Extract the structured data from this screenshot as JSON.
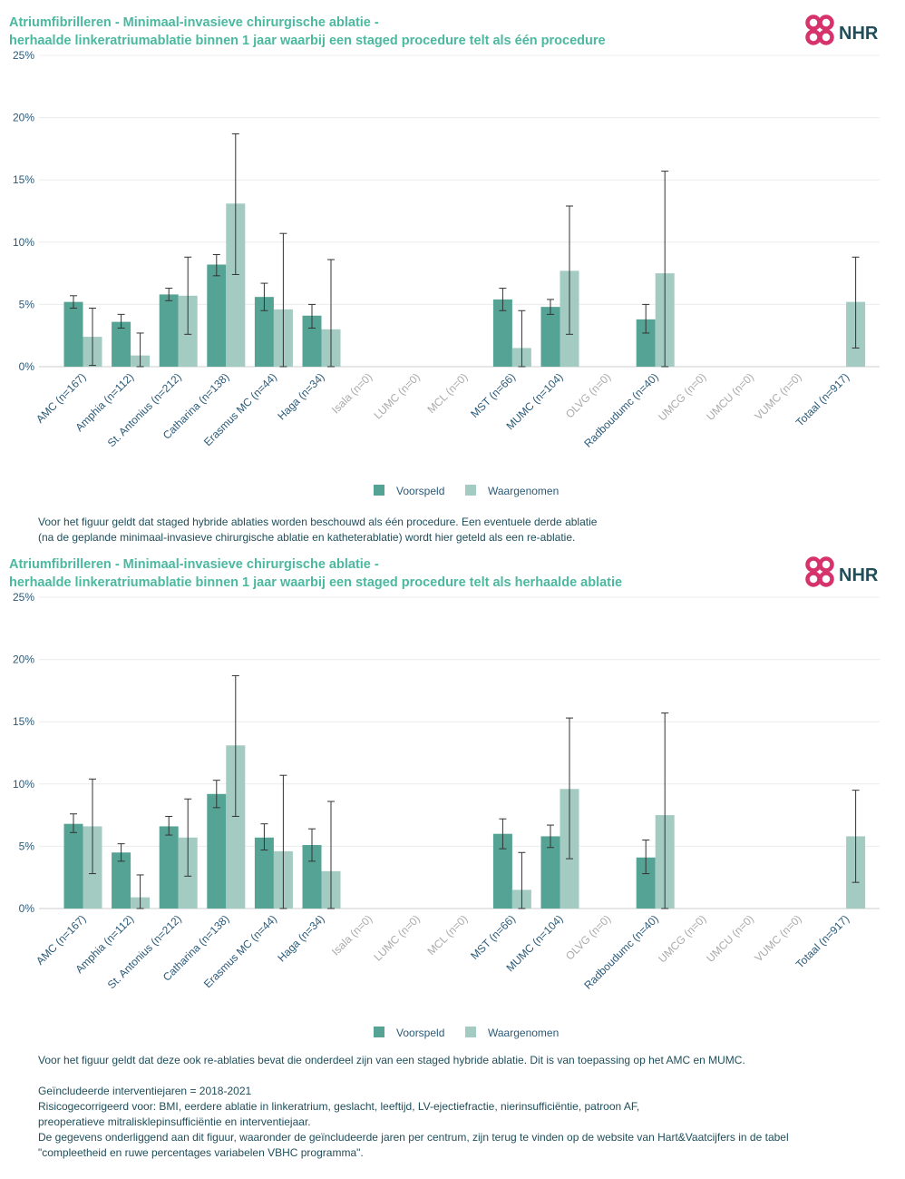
{
  "logo": {
    "text": "NHR",
    "brand_color": "#d6336c",
    "text_color": "#1f4e5a"
  },
  "legend": {
    "predicted": "Voorspeld",
    "observed": "Waargenomen"
  },
  "colors": {
    "predicted": "#55a394",
    "observed": "#a3cbc2",
    "active_label": "#2b5a78",
    "inactive_label": "#aaaaaa",
    "title": "#4bb8a0",
    "text": "#1f4e5a"
  },
  "chart1": {
    "title_line1": "Atriumfibrilleren - Minimaal-invasieve chirurgische ablatie -",
    "title_line2": "herhaalde linkeratriumablatie binnen 1 jaar waarbij een staged procedure telt als één procedure",
    "note_line1": "Voor het figuur geldt dat staged hybride ablaties worden beschouwd als één procedure. Een eventuele derde ablatie",
    "note_line2": "(na de geplande minimaal-invasieve chirurgische ablatie en katheterablatie) wordt hier geteld als een re-ablatie."
  },
  "chart2": {
    "title_line1": "Atriumfibrilleren - Minimaal-invasieve chirurgische ablatie -",
    "title_line2": "herhaalde linkeratriumablatie binnen 1 jaar waarbij een staged procedure telt als herhaalde ablatie",
    "note_line1": "Voor het figuur geldt dat deze ook re-ablaties bevat die onderdeel zijn van een staged hybride ablatie. Dit is van toepassing op het AMC en MUMC."
  },
  "footer": {
    "line1": "Geïncludeerde interventiejaren = 2018-2021",
    "line2": "Risicogecorrigeerd voor: BMI, eerdere ablatie in linkeratrium, geslacht, leeftijd, LV-ejectiefractie, nierinsufficiëntie, patroon AF,",
    "line3": "preoperatieve mitralisklepinsufficiëntie en interventiejaar.",
    "line4": "De gegevens onderliggend aan dit figuur, waaronder de geïncludeerde jaren per centrum, zijn terug te vinden op de website van Hart&Vaatcijfers in de tabel",
    "line5": "\"compleetheid en ruwe percentages variabelen VBHC programma\"."
  },
  "chart_data": [
    {
      "type": "bar",
      "title": "Atriumfibrilleren - Minimaal-invasieve chirurgische ablatie - herhaalde linkeratriumablatie binnen 1 jaar waarbij een staged procedure telt als één procedure",
      "categories": [
        "AMC (n=167)",
        "Amphia (n=112)",
        "St. Antonius (n=212)",
        "Catharina (n=138)",
        "Erasmus MC (n=44)",
        "Haga (n=34)",
        "Isala (n=0)",
        "LUMC (n=0)",
        "MCL (n=0)",
        "MST (n=66)",
        "MUMC (n=104)",
        "OLVG (n=0)",
        "Radboudumc (n=40)",
        "UMCG (n=0)",
        "UMCU (n=0)",
        "VUMC (n=0)",
        "Totaal (n=917)"
      ],
      "active": [
        true,
        true,
        true,
        true,
        true,
        true,
        false,
        false,
        false,
        true,
        true,
        false,
        true,
        false,
        false,
        false,
        true
      ],
      "yticks": [
        "0%",
        "5%",
        "10%",
        "15%",
        "20%",
        "25%"
      ],
      "ylim": [
        0,
        25
      ],
      "series": [
        {
          "name": "Voorspeld",
          "values": [
            5.2,
            3.6,
            5.8,
            8.2,
            5.6,
            4.1,
            null,
            null,
            null,
            5.4,
            4.8,
            null,
            3.8,
            null,
            null,
            null,
            null
          ],
          "lower": [
            4.7,
            3.1,
            5.3,
            7.3,
            4.5,
            3.1,
            null,
            null,
            null,
            4.5,
            4.2,
            null,
            2.7,
            null,
            null,
            null,
            null
          ],
          "upper": [
            5.7,
            4.2,
            6.3,
            9.0,
            6.7,
            5.0,
            null,
            null,
            null,
            6.3,
            5.4,
            null,
            5.0,
            null,
            null,
            null,
            null
          ]
        },
        {
          "name": "Waargenomen",
          "values": [
            2.4,
            0.9,
            5.7,
            13.1,
            4.6,
            3.0,
            null,
            null,
            null,
            1.5,
            7.7,
            null,
            7.5,
            null,
            null,
            null,
            5.2
          ],
          "lower": [
            0.1,
            0.0,
            2.6,
            7.4,
            0.0,
            0.0,
            null,
            null,
            null,
            0.0,
            2.6,
            null,
            0.0,
            null,
            null,
            null,
            1.5
          ],
          "upper": [
            4.7,
            2.7,
            8.8,
            18.7,
            10.7,
            8.6,
            null,
            null,
            null,
            4.5,
            12.9,
            null,
            15.7,
            null,
            null,
            null,
            8.8
          ]
        }
      ]
    },
    {
      "type": "bar",
      "title": "Atriumfibrilleren - Minimaal-invasieve chirurgische ablatie - herhaalde linkeratriumablatie binnen 1 jaar waarbij een staged procedure telt als herhaalde ablatie",
      "categories": [
        "AMC (n=167)",
        "Amphia (n=112)",
        "St. Antonius (n=212)",
        "Catharina (n=138)",
        "Erasmus MC (n=44)",
        "Haga (n=34)",
        "Isala (n=0)",
        "LUMC (n=0)",
        "MCL (n=0)",
        "MST (n=66)",
        "MUMC (n=104)",
        "OLVG (n=0)",
        "Radboudumc (n=40)",
        "UMCG (n=0)",
        "UMCU (n=0)",
        "VUMC (n=0)",
        "Totaal (n=917)"
      ],
      "active": [
        true,
        true,
        true,
        true,
        true,
        true,
        false,
        false,
        false,
        true,
        true,
        false,
        true,
        false,
        false,
        false,
        true
      ],
      "yticks": [
        "0%",
        "5%",
        "10%",
        "15%",
        "20%",
        "25%"
      ],
      "ylim": [
        0,
        25
      ],
      "series": [
        {
          "name": "Voorspeld",
          "values": [
            6.8,
            4.5,
            6.6,
            9.2,
            5.7,
            5.1,
            null,
            null,
            null,
            6.0,
            5.8,
            null,
            4.1,
            null,
            null,
            null,
            null
          ],
          "lower": [
            6.1,
            3.8,
            5.9,
            8.1,
            4.7,
            3.8,
            null,
            null,
            null,
            4.8,
            4.9,
            null,
            2.8,
            null,
            null,
            null,
            null
          ],
          "upper": [
            7.6,
            5.2,
            7.4,
            10.3,
            6.8,
            6.4,
            null,
            null,
            null,
            7.2,
            6.7,
            null,
            5.5,
            null,
            null,
            null,
            null
          ]
        },
        {
          "name": "Waargenomen",
          "values": [
            6.6,
            0.9,
            5.7,
            13.1,
            4.6,
            3.0,
            null,
            null,
            null,
            1.5,
            9.6,
            null,
            7.5,
            null,
            null,
            null,
            5.8
          ],
          "lower": [
            2.8,
            0.0,
            2.6,
            7.4,
            0.0,
            0.0,
            null,
            null,
            null,
            0.0,
            4.0,
            null,
            0.0,
            null,
            null,
            null,
            2.1
          ],
          "upper": [
            10.4,
            2.7,
            8.8,
            18.7,
            10.7,
            8.6,
            null,
            null,
            null,
            4.5,
            15.3,
            null,
            15.7,
            null,
            null,
            null,
            9.5
          ]
        }
      ]
    }
  ]
}
